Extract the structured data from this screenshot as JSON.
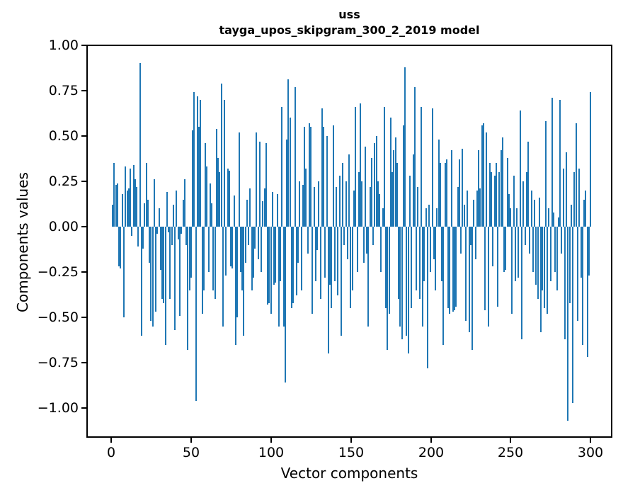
{
  "figure": {
    "title_line1": "uss",
    "title_line2": "tayga_upos_skipgram_300_2_2019 model"
  },
  "chart_data": {
    "type": "bar",
    "title": "uss",
    "subtitle": "tayga_upos_skipgram_300_2_2019 model",
    "xlabel": "Vector components",
    "ylabel": "Components values",
    "bar_color": "#1f77b4",
    "background": "#ffffff",
    "grid": false,
    "legend": "none",
    "xlim": [
      -15.6,
      313.6
    ],
    "ylim": [
      -1.163,
      1.003
    ],
    "x_start": 0,
    "x_ticks": [
      0,
      50,
      100,
      150,
      200,
      250,
      300
    ],
    "x_tick_labels": [
      "0",
      "50",
      "100",
      "150",
      "200",
      "250",
      "300"
    ],
    "y_ticks": [
      1.0,
      0.75,
      0.5,
      0.25,
      0.0,
      -0.25,
      -0.5,
      -0.75,
      -1.0
    ],
    "y_tick_labels": [
      "1.00",
      "0.75",
      "0.50",
      "0.25",
      "0.00",
      "−0.25",
      "−0.50",
      "−0.75",
      "−1.00"
    ],
    "values": [
      0.12,
      0.35,
      0.23,
      0.24,
      -0.22,
      -0.23,
      0.18,
      -0.5,
      0.33,
      0.2,
      0.21,
      0.32,
      -0.05,
      0.34,
      0.26,
      0.22,
      -0.11,
      0.9,
      -0.6,
      -0.12,
      0.13,
      0.35,
      0.15,
      -0.2,
      -0.52,
      -0.55,
      0.26,
      -0.47,
      -0.04,
      0.1,
      -0.24,
      -0.4,
      -0.42,
      -0.65,
      0.19,
      -0.03,
      -0.4,
      -0.1,
      0.12,
      -0.57,
      0.2,
      -0.07,
      -0.49,
      -0.04,
      0.15,
      0.26,
      -0.1,
      -0.68,
      -0.35,
      -0.28,
      0.53,
      0.74,
      -0.96,
      0.72,
      0.55,
      0.7,
      -0.48,
      -0.35,
      0.46,
      0.33,
      -0.25,
      0.24,
      0.13,
      -0.35,
      -0.4,
      0.54,
      0.38,
      0.3,
      0.79,
      -0.55,
      0.7,
      -0.27,
      0.32,
      0.31,
      -0.22,
      -0.23,
      0.17,
      -0.65,
      -0.5,
      0.52,
      -0.25,
      -0.35,
      -0.6,
      -0.2,
      0.15,
      -0.1,
      0.21,
      -0.35,
      -0.28,
      -0.12,
      0.52,
      -0.18,
      0.47,
      -0.25,
      0.14,
      0.21,
      0.46,
      -0.43,
      -0.42,
      -0.48,
      0.19,
      -0.32,
      -0.31,
      0.18,
      -0.55,
      -0.3,
      0.66,
      -0.55,
      -0.86,
      0.48,
      0.81,
      0.6,
      -0.45,
      -0.42,
      0.77,
      -0.38,
      -0.2,
      0.25,
      -0.35,
      0.23,
      0.55,
      0.32,
      -0.15,
      0.57,
      0.55,
      -0.48,
      0.22,
      -0.3,
      -0.13,
      0.25,
      -0.4,
      0.65,
      0.55,
      -0.28,
      0.5,
      -0.7,
      -0.32,
      -0.45,
      0.56,
      -0.3,
      0.22,
      -0.38,
      0.28,
      -0.6,
      0.35,
      -0.1,
      0.25,
      -0.18,
      0.4,
      -0.45,
      -0.35,
      0.2,
      0.66,
      -0.25,
      0.3,
      0.68,
      0.25,
      -0.2,
      0.44,
      -0.15,
      -0.55,
      0.22,
      0.38,
      -0.1,
      0.46,
      0.5,
      0.25,
      0.18,
      -0.25,
      0.1,
      0.66,
      -0.45,
      -0.68,
      -0.48,
      0.6,
      0.3,
      0.42,
      0.49,
      0.35,
      -0.4,
      -0.55,
      -0.62,
      0.56,
      0.88,
      -0.6,
      -0.7,
      0.28,
      -0.45,
      0.4,
      0.77,
      -0.35,
      0.22,
      -0.4,
      0.66,
      -0.55,
      -0.3,
      0.1,
      -0.78,
      0.12,
      -0.25,
      0.65,
      -0.18,
      -0.35,
      0.1,
      0.48,
      0.35,
      -0.3,
      -0.65,
      0.35,
      0.37,
      -0.45,
      -0.48,
      0.42,
      -0.47,
      -0.46,
      -0.44,
      0.22,
      0.37,
      -0.15,
      0.43,
      0.12,
      -0.52,
      0.2,
      -0.58,
      -0.1,
      -0.68,
      0.15,
      -0.18,
      0.2,
      0.42,
      0.21,
      0.56,
      0.57,
      -0.46,
      0.52,
      -0.55,
      0.35,
      0.3,
      -0.22,
      0.28,
      0.35,
      -0.44,
      0.3,
      0.42,
      0.49,
      -0.25,
      -0.24,
      0.38,
      0.18,
      0.1,
      -0.48,
      0.28,
      -0.3,
      0.1,
      -0.28,
      0.64,
      -0.62,
      0.25,
      -0.1,
      0.3,
      0.47,
      -0.15,
      0.2,
      -0.25,
      0.15,
      -0.32,
      -0.4,
      0.16,
      -0.58,
      -0.35,
      -0.45,
      0.58,
      -0.48,
      0.1,
      -0.3,
      0.71,
      0.08,
      -0.25,
      -0.35,
      0.05,
      0.7,
      -0.15,
      0.32,
      -0.62,
      0.41,
      -1.07,
      -0.42,
      0.12,
      -0.97,
      0.3,
      0.57,
      -0.52,
      0.32,
      -0.28,
      -0.65,
      0.15,
      0.2,
      -0.72,
      -0.27,
      0.74
    ]
  }
}
